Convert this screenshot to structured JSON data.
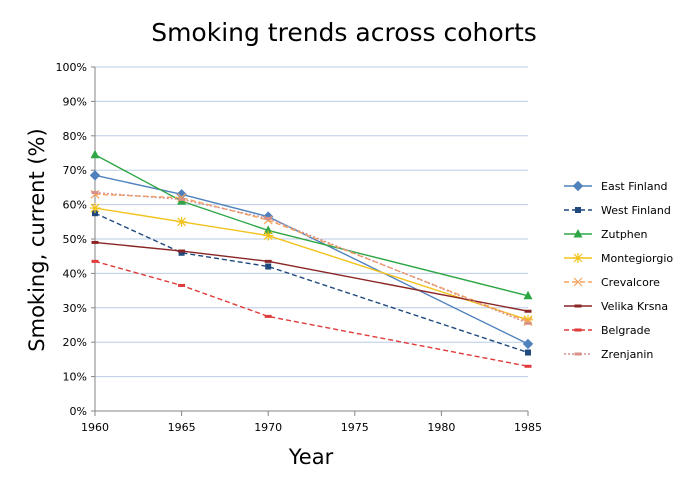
{
  "chart_data": {
    "type": "line",
    "title": "Smoking trends across cohorts",
    "xlabel": "Year",
    "ylabel": "Smoking, current (%)",
    "xlim": [
      1960,
      1985
    ],
    "ylim": [
      0,
      100
    ],
    "xticks": [
      1960,
      1965,
      1970,
      1975,
      1980,
      1985
    ],
    "xtick_labels": [
      "1960",
      "1965",
      "1970",
      "1975",
      "1980",
      "1985"
    ],
    "yticks": [
      0,
      10,
      20,
      30,
      40,
      50,
      60,
      70,
      80,
      90,
      100
    ],
    "ytick_labels": [
      "0%",
      "10%",
      "20%",
      "30%",
      "40%",
      "50%",
      "60%",
      "70%",
      "80%",
      "90%",
      "100%"
    ],
    "grid": true,
    "legend_position": "right",
    "series": [
      {
        "name": "East Finland",
        "color": "#4f81bd",
        "dash": "solid",
        "marker": "diamond",
        "x": [
          1960,
          1965,
          1970,
          1985
        ],
        "values": [
          68.5,
          63,
          56.5,
          19.5
        ]
      },
      {
        "name": "West Finland",
        "color": "#1f497d",
        "dash": "dashed",
        "marker": "square",
        "x": [
          1960,
          1965,
          1970,
          1985
        ],
        "values": [
          57.5,
          46,
          42,
          17
        ]
      },
      {
        "name": "Zutphen",
        "color": "#2ea645",
        "dash": "solid",
        "marker": "triangle",
        "x": [
          1960,
          1965,
          1970,
          1985
        ],
        "values": [
          74.5,
          61,
          52.5,
          33.5
        ]
      },
      {
        "name": "Montegiorgio",
        "color": "#f2c21b",
        "dash": "solid",
        "marker": "asterisk",
        "x": [
          1960,
          1965,
          1970,
          1985
        ],
        "values": [
          59,
          55,
          51,
          26.5
        ]
      },
      {
        "name": "Crevalcore",
        "color": "#f7a35c",
        "dash": "dashed",
        "marker": "x",
        "x": [
          1960,
          1965,
          1970,
          1985
        ],
        "values": [
          63,
          62,
          55.5,
          26
        ]
      },
      {
        "name": "Velika Krsna",
        "color": "#8b2525",
        "dash": "solid",
        "marker": "dash",
        "x": [
          1960,
          1965,
          1970,
          1985
        ],
        "values": [
          49,
          46.5,
          43.5,
          29
        ]
      },
      {
        "name": "Belgrade",
        "color": "#e03a3a",
        "dash": "dashed",
        "marker": "dash",
        "x": [
          1960,
          1965,
          1970,
          1985
        ],
        "values": [
          43.5,
          36.5,
          27.5,
          13
        ]
      },
      {
        "name": "Zrenjanin",
        "color": "#d9908a",
        "dash": "dotted",
        "marker": "dash",
        "x": [
          1960,
          1965,
          1970,
          1985
        ],
        "values": [
          63.5,
          61.5,
          56,
          25.5
        ]
      }
    ]
  }
}
